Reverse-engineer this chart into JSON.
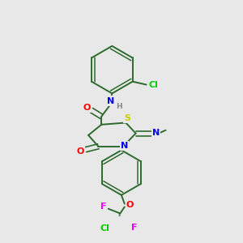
{
  "bg_color": "#e8e8e8",
  "bond_color": "#2d6a2d",
  "atom_colors": {
    "O": "#ff0000",
    "N": "#0000ee",
    "S": "#cccc00",
    "F": "#ee00ee",
    "Cl_green": "#00cc00",
    "Cl_lower": "#00cc00",
    "H": "#888888",
    "C": "#2d6a2d"
  },
  "font_size": 8.0
}
